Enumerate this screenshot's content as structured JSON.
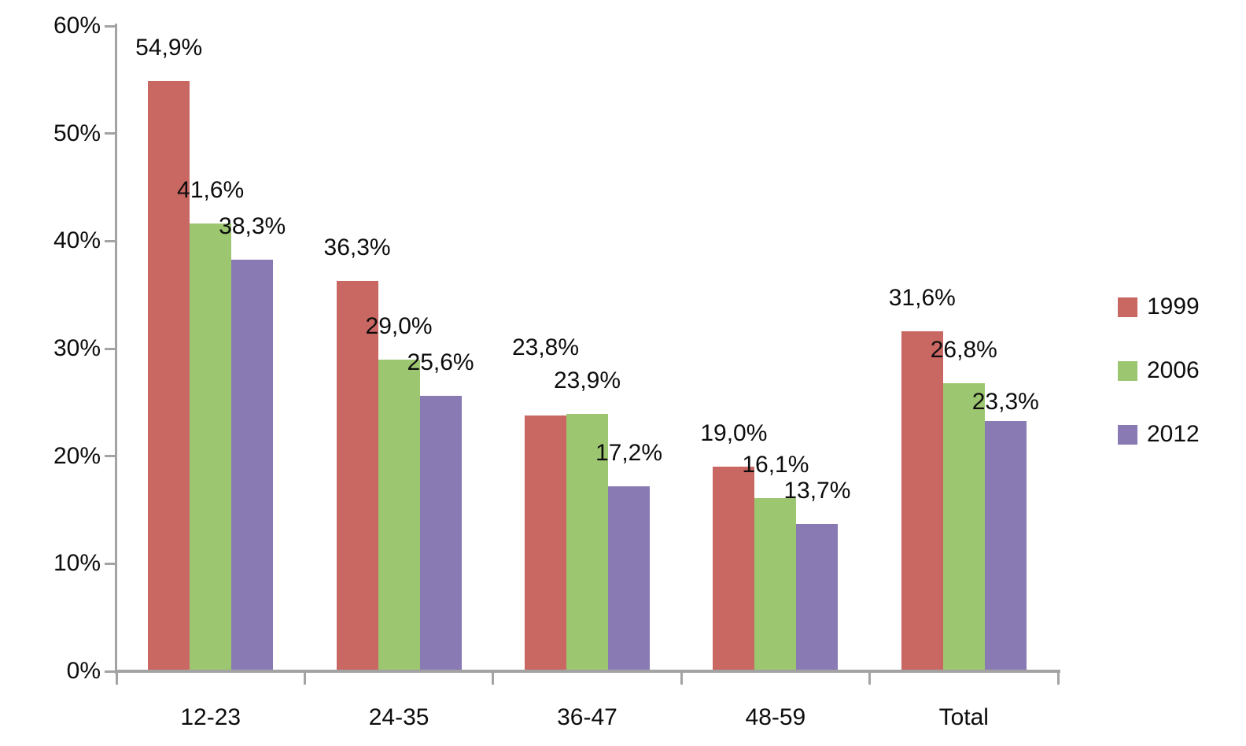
{
  "chart_data": {
    "type": "bar",
    "title": "",
    "xlabel": "",
    "ylabel": "",
    "categories": [
      "12-23",
      "24-35",
      "36-47",
      "48-59",
      "Total"
    ],
    "series": [
      {
        "name": "1999",
        "color": "#c96763",
        "values": [
          54.9,
          36.3,
          23.8,
          19.0,
          31.6
        ],
        "data_labels": [
          "54,9%",
          "36,3%",
          "23,8%",
          "19,0%",
          "31,6%"
        ]
      },
      {
        "name": "2006",
        "color": "#9dc671",
        "values": [
          41.6,
          29.0,
          23.9,
          16.1,
          26.8
        ],
        "data_labels": [
          "41,6%",
          "29,0%",
          "23,9%",
          "16,1%",
          "26,8%"
        ]
      },
      {
        "name": "2012",
        "color": "#897ab4",
        "values": [
          38.3,
          25.6,
          17.2,
          13.7,
          23.3
        ],
        "data_labels": [
          "38,3%",
          "25,6%",
          "17,2%",
          "13,7%",
          "23,3%"
        ]
      }
    ],
    "y_axis": {
      "min": 0,
      "max": 60,
      "step": 10,
      "tick_labels": [
        "0%",
        "10%",
        "20%",
        "30%",
        "40%",
        "50%",
        "60%"
      ]
    },
    "ylim": [
      0,
      60
    ],
    "grid": false,
    "legend": {
      "position": "right",
      "entries": [
        "1999",
        "2006",
        "2012"
      ]
    },
    "axis_color": "#a3a3a3",
    "text_color": "#0d0d0d",
    "background": "#ffffff",
    "label_gap_default": 26,
    "label_gap_overrides": [
      {
        "series": 0,
        "category_index": 2,
        "gap": 70
      },
      {
        "series": 2,
        "category_index": 4,
        "gap": 8
      }
    ]
  }
}
